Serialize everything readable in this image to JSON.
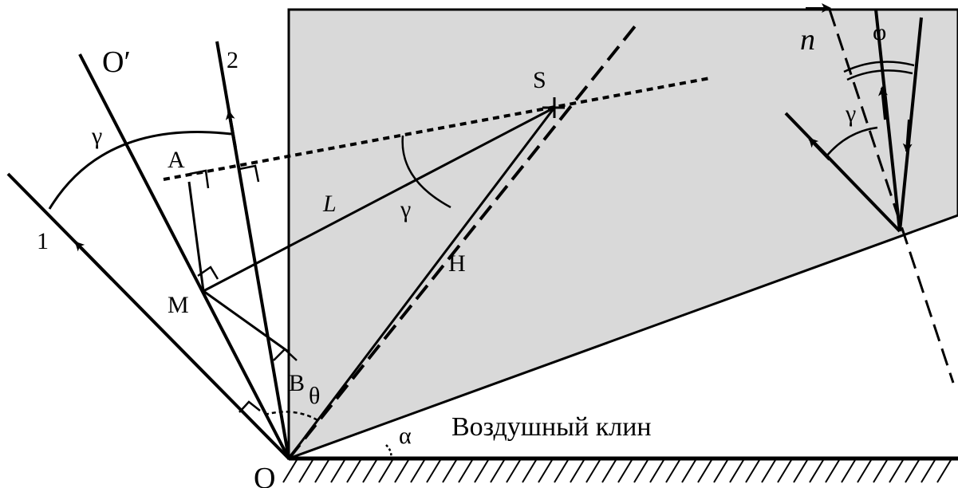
{
  "labels": {
    "O": "O",
    "O_prime": "O′",
    "ray_1": "1",
    "ray_2": "2",
    "gamma_left": "γ",
    "A": "A",
    "M": "M",
    "B": "B",
    "theta": "θ",
    "L": "L",
    "gamma_mid": "γ",
    "S": "S",
    "H": "H",
    "n_vector": "n",
    "phi": "φ",
    "gamma_right": "γ",
    "alpha": "α",
    "wedge_caption": "Воздушный клин"
  },
  "colors": {
    "wedge_fill": "#d9d9d9",
    "stroke": "#000000",
    "background": "#ffffff"
  }
}
